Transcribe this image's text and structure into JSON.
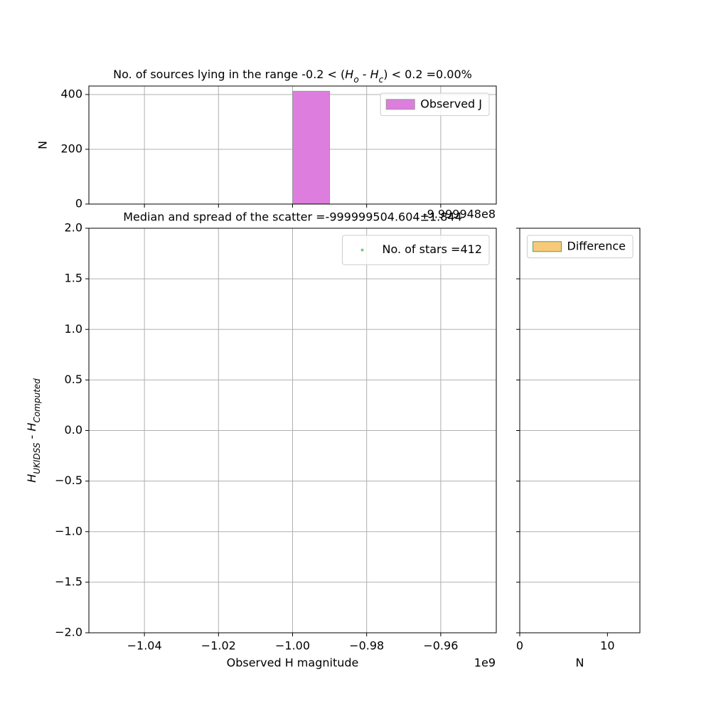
{
  "chart_data": [
    {
      "type": "histogram",
      "title_parts": [
        {
          "text": "No. of sources lying in the range -0.2 < ("
        },
        {
          "text": "H",
          "italic": true
        },
        {
          "text": "o",
          "italic": true,
          "sub": true
        },
        {
          "text": " - "
        },
        {
          "text": "H",
          "italic": true
        },
        {
          "text": "c",
          "italic": true,
          "sub": true
        },
        {
          "text": ") < 0.2 =0.00%"
        }
      ],
      "ylabel": "N",
      "name": "Observed J",
      "color": "#dd7ddd",
      "edgecolor": "#999999",
      "bins": [
        -1.0,
        -0.99
      ],
      "counts": [
        412
      ],
      "xlim": [
        -1.055,
        -0.945
      ],
      "xticks": [
        -1.04,
        -1.02,
        -1.0,
        -0.98,
        -0.96
      ],
      "xticklabels": false,
      "ylim": [
        0,
        431
      ],
      "yticks": [
        0,
        200,
        400
      ],
      "offset_text": "-9.999948e8",
      "legend": "upper right",
      "grid": true
    },
    {
      "type": "scatter",
      "title": "Median and spread of the scatter =-999999504.604±1.844",
      "xlabel": "Observed H magnitude",
      "ylabel_parts": [
        {
          "text": "H",
          "italic": true
        },
        {
          "text": "UKIDSS",
          "italic": true,
          "sub": true
        },
        {
          "text": " - "
        },
        {
          "text": "H",
          "italic": true
        },
        {
          "text": "Computed",
          "italic": true,
          "sub": true
        }
      ],
      "series": [
        {
          "name": "No. of stars =412",
          "color": "#7fc97f",
          "x": [],
          "values": []
        }
      ],
      "xlim": [
        -1.055,
        -0.945
      ],
      "xticks": [
        {
          "value": -1.04,
          "label": "−1.04"
        },
        {
          "value": -1.02,
          "label": "−1.02"
        },
        {
          "value": -1.0,
          "label": "−1.00"
        },
        {
          "value": -0.98,
          "label": "−0.98"
        },
        {
          "value": -0.96,
          "label": "−0.96"
        }
      ],
      "ylim": [
        -2,
        2
      ],
      "yticks": [
        {
          "value": -2,
          "label": "−2.0"
        },
        {
          "value": -1.5,
          "label": "−1.5"
        },
        {
          "value": -1,
          "label": "−1.0"
        },
        {
          "value": -0.5,
          "label": "−0.5"
        },
        {
          "value": 0,
          "label": "0.0"
        },
        {
          "value": 0.5,
          "label": "0.5"
        },
        {
          "value": 1,
          "label": "1.0"
        },
        {
          "value": 1.5,
          "label": "1.5"
        },
        {
          "value": 2,
          "label": "2.0"
        }
      ],
      "offset_text": "1e9",
      "legend": "upper right",
      "grid": true
    },
    {
      "type": "histogram",
      "xlabel": "N",
      "name": "Difference",
      "color": "#f7c979",
      "edgecolor": "#5aa05a",
      "xlim": [
        0,
        13.7
      ],
      "xticks": [
        0,
        10
      ],
      "ylim": [
        -2,
        2
      ],
      "yticks": [
        -2,
        -1.5,
        -1,
        -0.5,
        0,
        0.5,
        1,
        1.5,
        2
      ],
      "yticklabels": false,
      "legend": "upper right",
      "grid": "y"
    }
  ]
}
